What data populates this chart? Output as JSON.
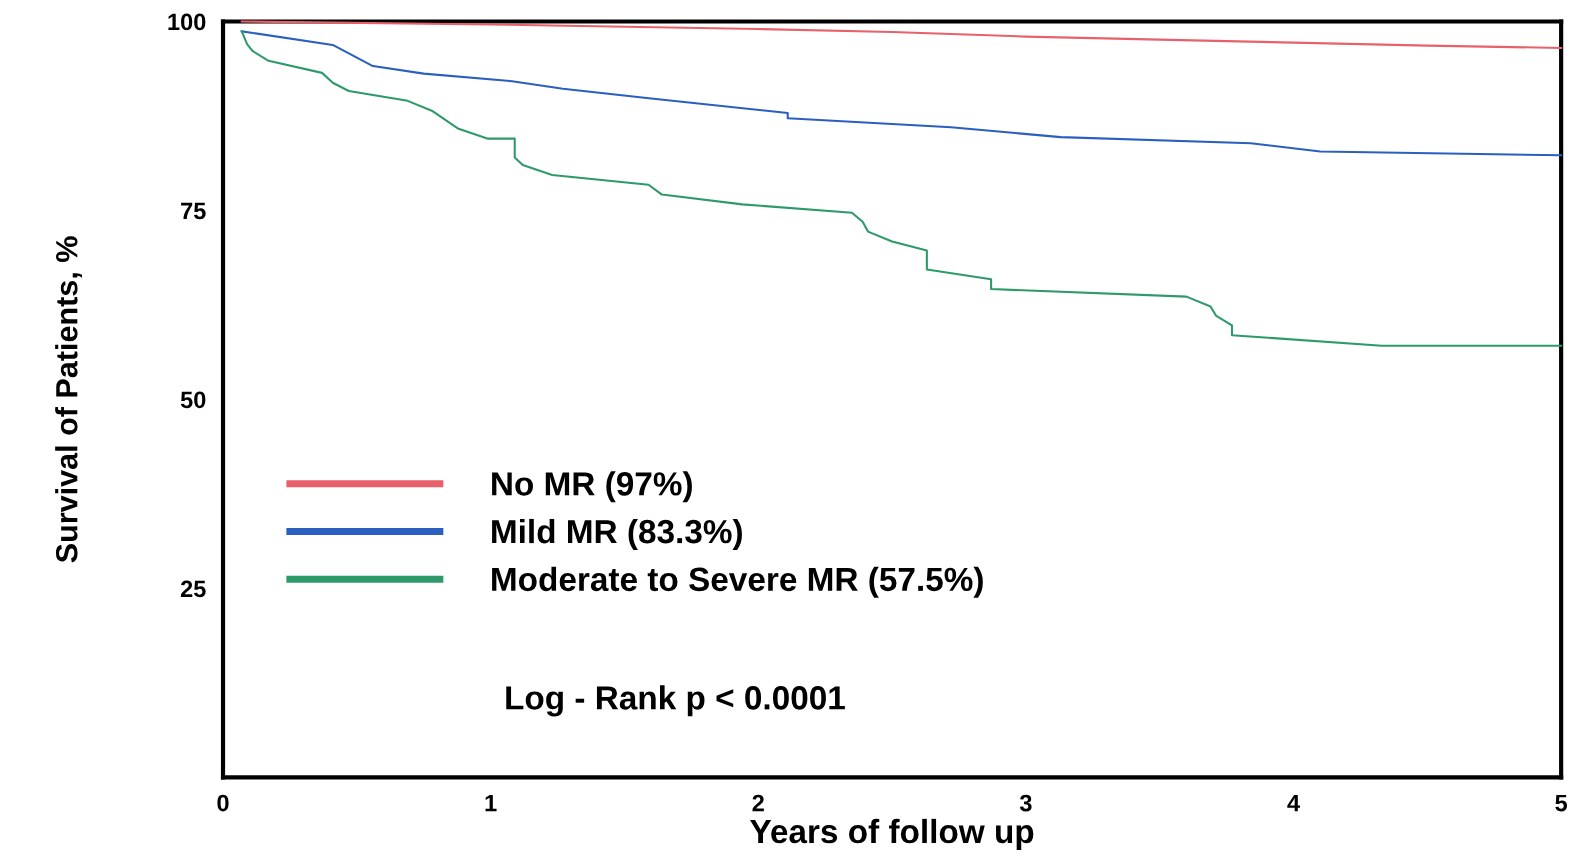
{
  "chart_data": {
    "type": "line",
    "xlabel": "Years of follow up",
    "ylabel": "Survival of Patients, %",
    "xlim": [
      0,
      5
    ],
    "xticks": [
      0,
      1,
      2,
      3,
      4,
      5
    ],
    "ylim": [
      0,
      100
    ],
    "yticks": [
      25,
      50,
      75,
      100
    ],
    "grid": false,
    "legend": "bottom left",
    "series": [
      {
        "name": "No MR (97%)",
        "color": "#e8606a",
        "x": [
          0.07,
          1,
          2,
          2.5,
          3,
          3.5,
          4,
          4.5,
          5
        ],
        "values": [
          100,
          99.6,
          99.0,
          98.6,
          98.0,
          97.6,
          97.2,
          96.8,
          96.5
        ]
      },
      {
        "name": "Mild MR (83.3%)",
        "color": "#2a5fc0",
        "x": [
          0.07,
          0.41,
          0.56,
          0.75,
          1.08,
          1.27,
          1.6,
          2.11,
          2.11,
          2.72,
          3.13,
          3.84,
          4.1,
          5.0
        ],
        "values": [
          98.7,
          96.9,
          94.1,
          93.1,
          92.1,
          91.1,
          89.8,
          87.9,
          87.2,
          86.0,
          84.7,
          83.9,
          82.8,
          82.3
        ]
      },
      {
        "name": "Moderate to Severe MR (57.5%)",
        "color": "#2e9a6a",
        "x": [
          0.07,
          0.09,
          0.11,
          0.17,
          0.37,
          0.41,
          0.47,
          0.69,
          0.78,
          0.88,
          0.99,
          1.09,
          1.09,
          1.12,
          1.23,
          1.59,
          1.64,
          1.94,
          2.35,
          2.39,
          2.41,
          2.5,
          2.63,
          2.63,
          2.87,
          2.87,
          3.6,
          3.69,
          3.71,
          3.77,
          3.77,
          4.33,
          5.0
        ],
        "values": [
          98.7,
          97.0,
          96.1,
          94.8,
          93.2,
          91.9,
          90.8,
          89.5,
          88.2,
          85.8,
          84.5,
          84.5,
          82.0,
          81.0,
          79.7,
          78.4,
          77.1,
          75.8,
          74.7,
          73.5,
          72.2,
          70.9,
          69.7,
          67.2,
          65.9,
          64.6,
          63.6,
          62.3,
          61.1,
          59.8,
          58.5,
          57.1,
          57.1
        ]
      }
    ],
    "annotations": [
      "Log - Rank p < 0.0001"
    ]
  }
}
